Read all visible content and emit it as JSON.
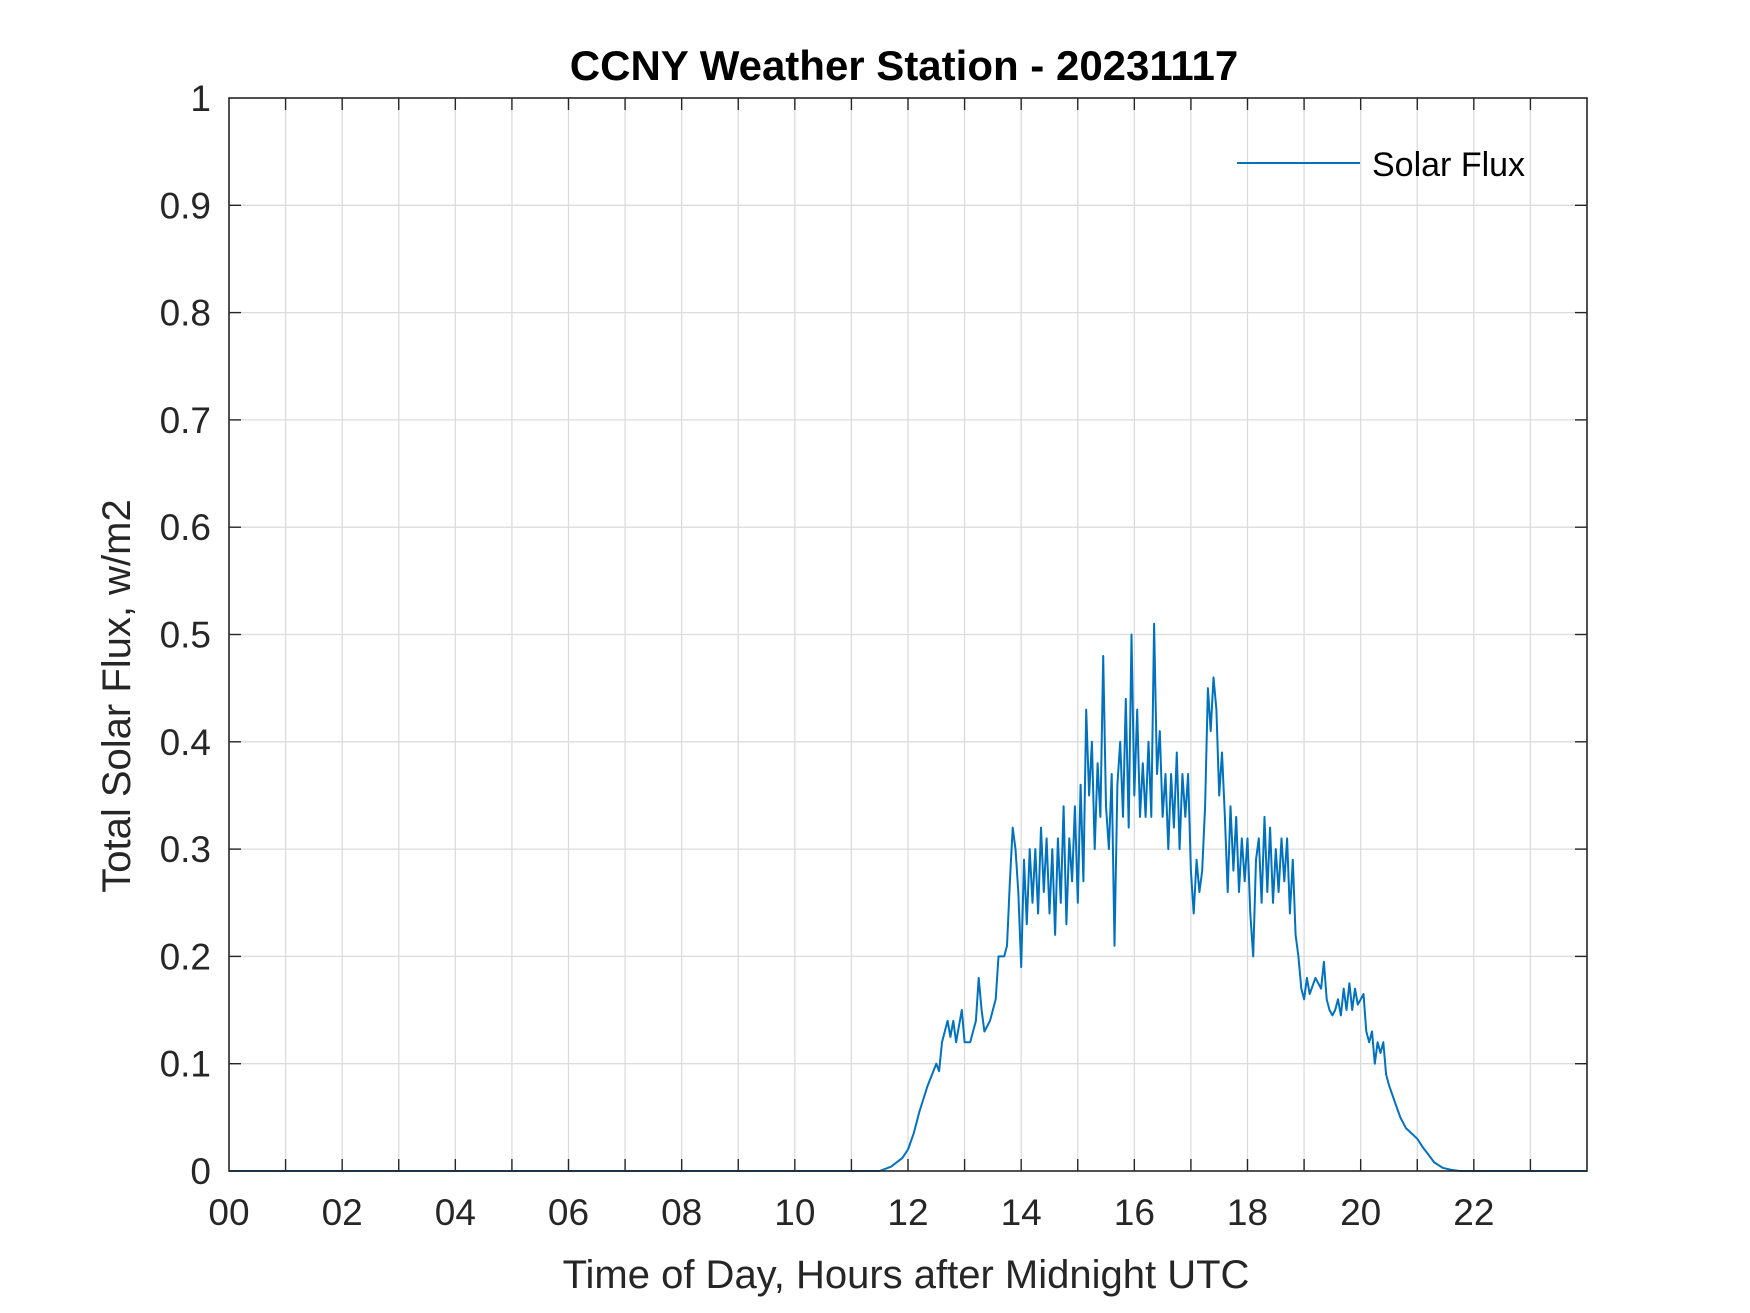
{
  "chart_data": {
    "type": "line",
    "title": "CCNY Weather Station - 20231117",
    "xlabel": "Time of Day, Hours after Midnight UTC",
    "ylabel": "Total Solar Flux, w/m2",
    "xlim": [
      0,
      24
    ],
    "ylim": [
      0,
      1
    ],
    "x_ticks": [
      0,
      2,
      4,
      6,
      8,
      10,
      12,
      14,
      16,
      18,
      20,
      22
    ],
    "x_tick_labels": [
      "00",
      "02",
      "04",
      "06",
      "08",
      "10",
      "12",
      "14",
      "16",
      "18",
      "20",
      "22"
    ],
    "y_ticks": [
      0,
      0.1,
      0.2,
      0.3,
      0.4,
      0.5,
      0.6,
      0.7,
      0.8,
      0.9,
      1
    ],
    "y_tick_labels": [
      "0",
      "0.1",
      "0.2",
      "0.3",
      "0.4",
      "0.5",
      "0.6",
      "0.7",
      "0.8",
      "0.9",
      "1"
    ],
    "grid": true,
    "legend_position": "top-right",
    "series": [
      {
        "name": "Solar Flux",
        "color": "#0072BD",
        "points": [
          [
            0,
            0
          ],
          [
            11.5,
            0
          ],
          [
            11.7,
            0.004
          ],
          [
            11.9,
            0.012
          ],
          [
            12.0,
            0.02
          ],
          [
            12.1,
            0.035
          ],
          [
            12.2,
            0.055
          ],
          [
            12.35,
            0.08
          ],
          [
            12.5,
            0.1
          ],
          [
            12.55,
            0.093
          ],
          [
            12.6,
            0.12
          ],
          [
            12.7,
            0.14
          ],
          [
            12.75,
            0.125
          ],
          [
            12.8,
            0.14
          ],
          [
            12.85,
            0.12
          ],
          [
            12.95,
            0.15
          ],
          [
            13.0,
            0.12
          ],
          [
            13.1,
            0.12
          ],
          [
            13.2,
            0.14
          ],
          [
            13.25,
            0.18
          ],
          [
            13.3,
            0.15
          ],
          [
            13.35,
            0.13
          ],
          [
            13.45,
            0.14
          ],
          [
            13.55,
            0.16
          ],
          [
            13.6,
            0.2
          ],
          [
            13.7,
            0.2
          ],
          [
            13.75,
            0.21
          ],
          [
            13.8,
            0.27
          ],
          [
            13.85,
            0.32
          ],
          [
            13.9,
            0.3
          ],
          [
            13.95,
            0.26
          ],
          [
            14.0,
            0.19
          ],
          [
            14.05,
            0.29
          ],
          [
            14.1,
            0.23
          ],
          [
            14.15,
            0.3
          ],
          [
            14.2,
            0.25
          ],
          [
            14.25,
            0.3
          ],
          [
            14.3,
            0.24
          ],
          [
            14.35,
            0.32
          ],
          [
            14.4,
            0.26
          ],
          [
            14.45,
            0.31
          ],
          [
            14.5,
            0.24
          ],
          [
            14.55,
            0.3
          ],
          [
            14.6,
            0.22
          ],
          [
            14.65,
            0.31
          ],
          [
            14.7,
            0.25
          ],
          [
            14.75,
            0.34
          ],
          [
            14.8,
            0.23
          ],
          [
            14.85,
            0.31
          ],
          [
            14.9,
            0.27
          ],
          [
            14.95,
            0.34
          ],
          [
            15.0,
            0.25
          ],
          [
            15.05,
            0.36
          ],
          [
            15.1,
            0.27
          ],
          [
            15.15,
            0.43
          ],
          [
            15.2,
            0.35
          ],
          [
            15.25,
            0.4
          ],
          [
            15.3,
            0.3
          ],
          [
            15.35,
            0.38
          ],
          [
            15.4,
            0.33
          ],
          [
            15.45,
            0.48
          ],
          [
            15.5,
            0.34
          ],
          [
            15.55,
            0.3
          ],
          [
            15.6,
            0.37
          ],
          [
            15.65,
            0.21
          ],
          [
            15.7,
            0.36
          ],
          [
            15.75,
            0.4
          ],
          [
            15.8,
            0.33
          ],
          [
            15.85,
            0.44
          ],
          [
            15.9,
            0.32
          ],
          [
            15.95,
            0.5
          ],
          [
            16.0,
            0.35
          ],
          [
            16.05,
            0.43
          ],
          [
            16.1,
            0.33
          ],
          [
            16.15,
            0.38
          ],
          [
            16.2,
            0.33
          ],
          [
            16.25,
            0.4
          ],
          [
            16.3,
            0.33
          ],
          [
            16.35,
            0.51
          ],
          [
            16.4,
            0.37
          ],
          [
            16.45,
            0.41
          ],
          [
            16.5,
            0.33
          ],
          [
            16.55,
            0.37
          ],
          [
            16.6,
            0.3
          ],
          [
            16.65,
            0.37
          ],
          [
            16.7,
            0.32
          ],
          [
            16.75,
            0.39
          ],
          [
            16.8,
            0.3
          ],
          [
            16.85,
            0.37
          ],
          [
            16.9,
            0.33
          ],
          [
            16.95,
            0.37
          ],
          [
            17.0,
            0.28
          ],
          [
            17.05,
            0.24
          ],
          [
            17.1,
            0.29
          ],
          [
            17.15,
            0.26
          ],
          [
            17.2,
            0.28
          ],
          [
            17.25,
            0.34
          ],
          [
            17.3,
            0.45
          ],
          [
            17.35,
            0.41
          ],
          [
            17.4,
            0.46
          ],
          [
            17.45,
            0.43
          ],
          [
            17.5,
            0.35
          ],
          [
            17.55,
            0.39
          ],
          [
            17.6,
            0.33
          ],
          [
            17.65,
            0.26
          ],
          [
            17.7,
            0.34
          ],
          [
            17.75,
            0.28
          ],
          [
            17.8,
            0.33
          ],
          [
            17.85,
            0.26
          ],
          [
            17.9,
            0.31
          ],
          [
            17.95,
            0.27
          ],
          [
            18.0,
            0.31
          ],
          [
            18.05,
            0.24
          ],
          [
            18.1,
            0.2
          ],
          [
            18.15,
            0.29
          ],
          [
            18.2,
            0.31
          ],
          [
            18.25,
            0.25
          ],
          [
            18.3,
            0.33
          ],
          [
            18.35,
            0.26
          ],
          [
            18.4,
            0.32
          ],
          [
            18.45,
            0.25
          ],
          [
            18.5,
            0.3
          ],
          [
            18.55,
            0.26
          ],
          [
            18.6,
            0.31
          ],
          [
            18.65,
            0.27
          ],
          [
            18.7,
            0.31
          ],
          [
            18.75,
            0.24
          ],
          [
            18.8,
            0.29
          ],
          [
            18.85,
            0.22
          ],
          [
            18.9,
            0.2
          ],
          [
            18.95,
            0.17
          ],
          [
            19.0,
            0.16
          ],
          [
            19.05,
            0.18
          ],
          [
            19.1,
            0.165
          ],
          [
            19.2,
            0.18
          ],
          [
            19.3,
            0.17
          ],
          [
            19.35,
            0.195
          ],
          [
            19.4,
            0.16
          ],
          [
            19.45,
            0.15
          ],
          [
            19.5,
            0.145
          ],
          [
            19.55,
            0.15
          ],
          [
            19.6,
            0.16
          ],
          [
            19.65,
            0.145
          ],
          [
            19.7,
            0.17
          ],
          [
            19.75,
            0.15
          ],
          [
            19.8,
            0.175
          ],
          [
            19.85,
            0.15
          ],
          [
            19.9,
            0.17
          ],
          [
            19.95,
            0.155
          ],
          [
            20.0,
            0.16
          ],
          [
            20.05,
            0.165
          ],
          [
            20.1,
            0.13
          ],
          [
            20.15,
            0.12
          ],
          [
            20.2,
            0.13
          ],
          [
            20.25,
            0.1
          ],
          [
            20.3,
            0.12
          ],
          [
            20.35,
            0.11
          ],
          [
            20.4,
            0.12
          ],
          [
            20.45,
            0.09
          ],
          [
            20.5,
            0.08
          ],
          [
            20.6,
            0.065
          ],
          [
            20.7,
            0.05
          ],
          [
            20.8,
            0.04
          ],
          [
            20.9,
            0.035
          ],
          [
            21.0,
            0.03
          ],
          [
            21.1,
            0.022
          ],
          [
            21.2,
            0.015
          ],
          [
            21.3,
            0.008
          ],
          [
            21.45,
            0.003
          ],
          [
            21.6,
            0.001
          ],
          [
            21.75,
            0
          ],
          [
            24,
            0
          ]
        ]
      }
    ]
  }
}
